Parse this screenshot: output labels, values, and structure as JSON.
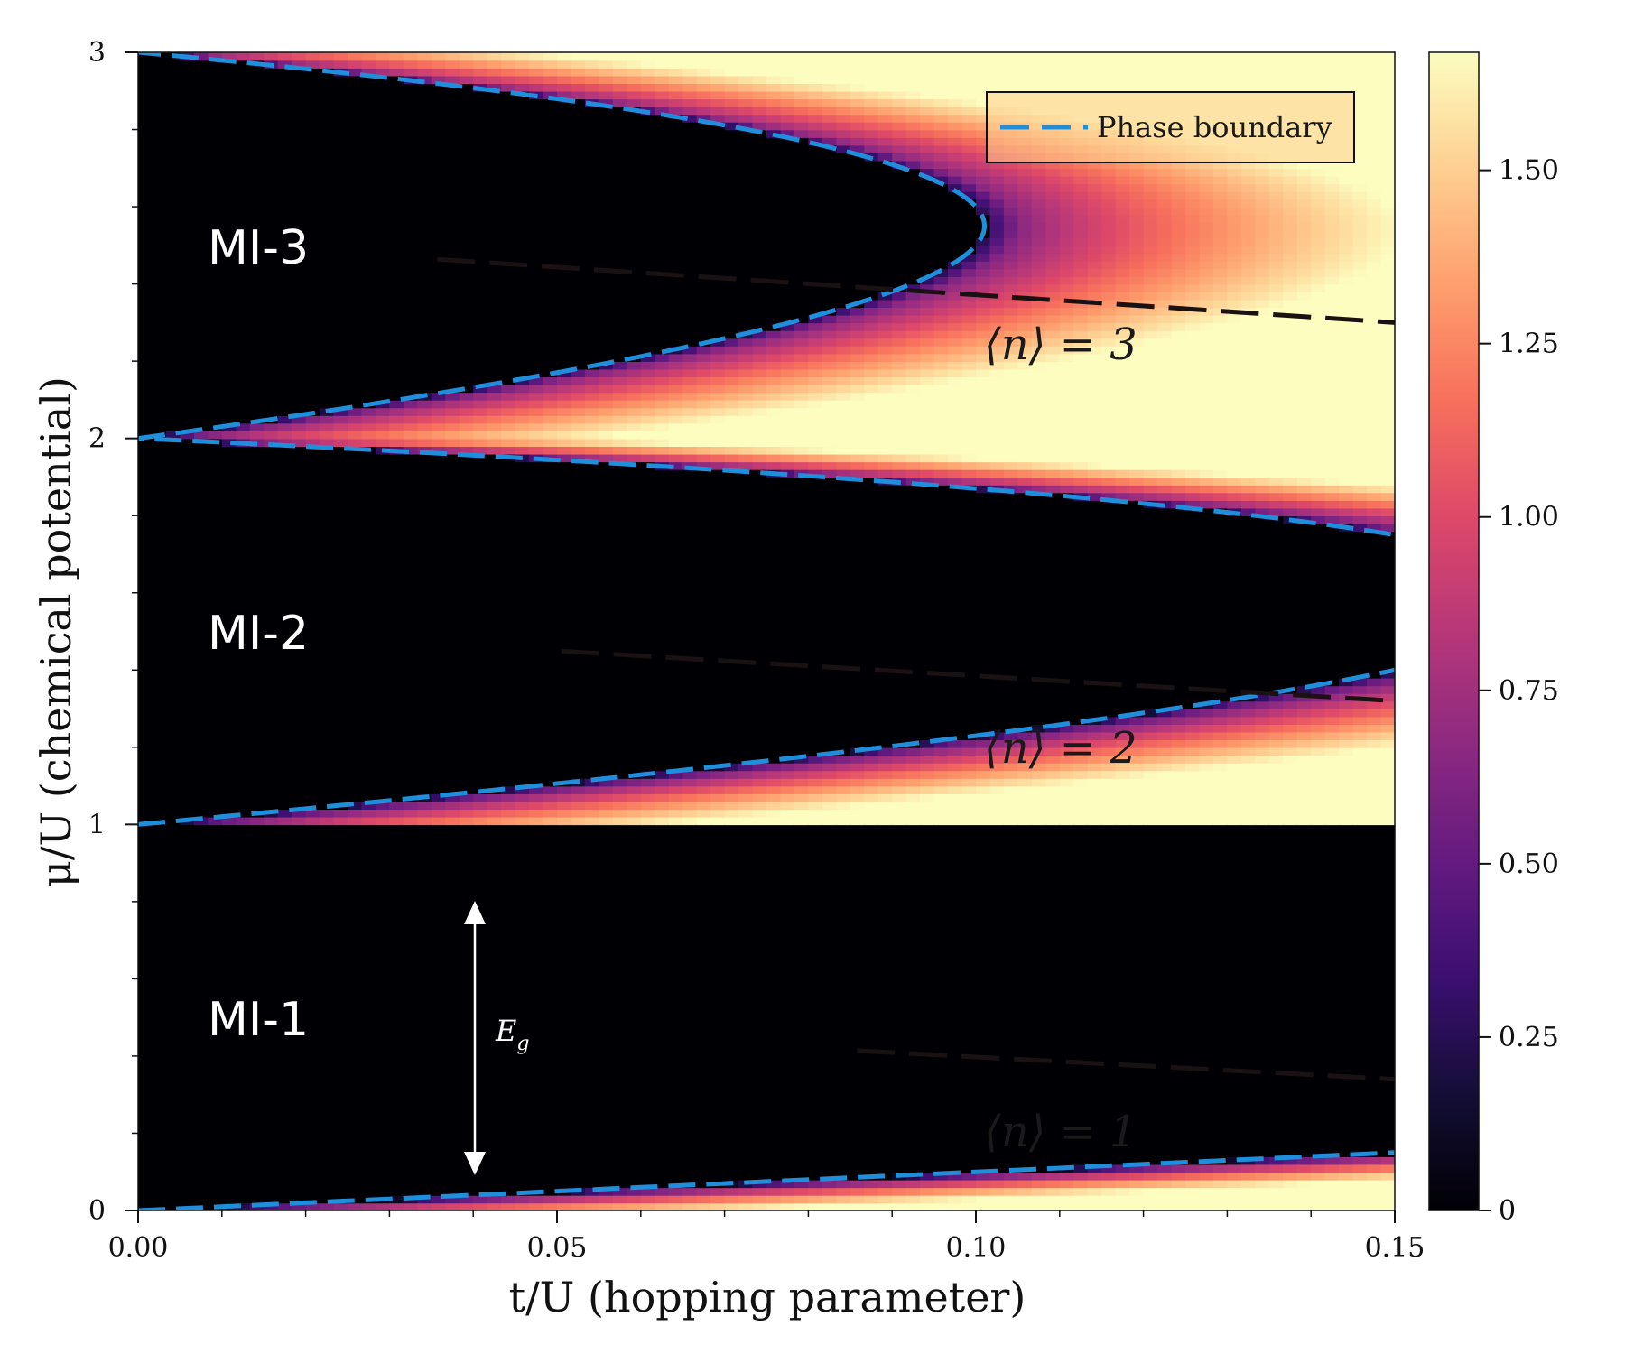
{
  "chart_data": {
    "type": "heatmap",
    "title": "",
    "xlabel": "t/U (hopping parameter)",
    "ylabel": "μ/U (chemical potential)",
    "xlim": [
      0.0,
      0.15
    ],
    "ylim": [
      0,
      3
    ],
    "x_ticks": [
      0.0,
      0.05,
      0.1,
      0.15
    ],
    "x_tick_labels": [
      "0.00",
      "0.05",
      "0.10",
      "0.15"
    ],
    "y_ticks": [
      0,
      1,
      2,
      3
    ],
    "y_tick_labels": [
      "0",
      "1",
      "2",
      "3"
    ],
    "colormap": "magma",
    "colorbar": {
      "range": [
        0,
        1.67
      ],
      "ticks": [
        0,
        0.25,
        0.5,
        0.75,
        1.0,
        1.25,
        1.5
      ],
      "tick_labels": [
        "0",
        "0.25",
        "0.50",
        "0.75",
        "1.00",
        "1.25",
        "1.50"
      ]
    },
    "grid": false,
    "legend": {
      "placement": "top-right",
      "entries": [
        {
          "name": "Phase boundary",
          "color": "#1f8fdc",
          "style": "dashed"
        }
      ]
    },
    "mott_lobes": [
      {
        "label": "MI-1",
        "n": 1,
        "mu_range": [
          0,
          1
        ],
        "tip": {
          "t": 0.0858,
          "mu": 0.414
        }
      },
      {
        "label": "MI-2",
        "n": 2,
        "mu_range": [
          1,
          2
        ],
        "tip": {
          "t": 0.0505,
          "mu": 1.449
        }
      },
      {
        "label": "MI-3",
        "n": 3,
        "mu_range": [
          2,
          3
        ],
        "tip": {
          "t": 0.0357,
          "mu": 2.464
        }
      }
    ],
    "density_lines": [
      {
        "label": "⟨n⟩ = 1",
        "points": [
          [
            0.0858,
            0.414
          ],
          [
            0.15,
            0.34
          ]
        ]
      },
      {
        "label": "⟨n⟩ = 2",
        "points": [
          [
            0.0505,
            1.449
          ],
          [
            0.15,
            1.32
          ]
        ]
      },
      {
        "label": "⟨n⟩ = 3",
        "points": [
          [
            0.0357,
            2.464
          ],
          [
            0.15,
            2.3
          ]
        ]
      }
    ],
    "annotations": [
      {
        "text": "E_g",
        "type": "double-arrow",
        "t": 0.04,
        "mu_range": [
          0.1,
          0.83
        ]
      }
    ]
  },
  "labels": {
    "region_mi1": "MI-1",
    "region_mi2": "MI-2",
    "region_mi3": "MI-3",
    "n1": "⟨n⟩ = 1",
    "n2": "⟨n⟩ = 2",
    "n3": "⟨n⟩ = 3",
    "legend": "Phase boundary",
    "gap_main": "E",
    "gap_sub": "g"
  }
}
